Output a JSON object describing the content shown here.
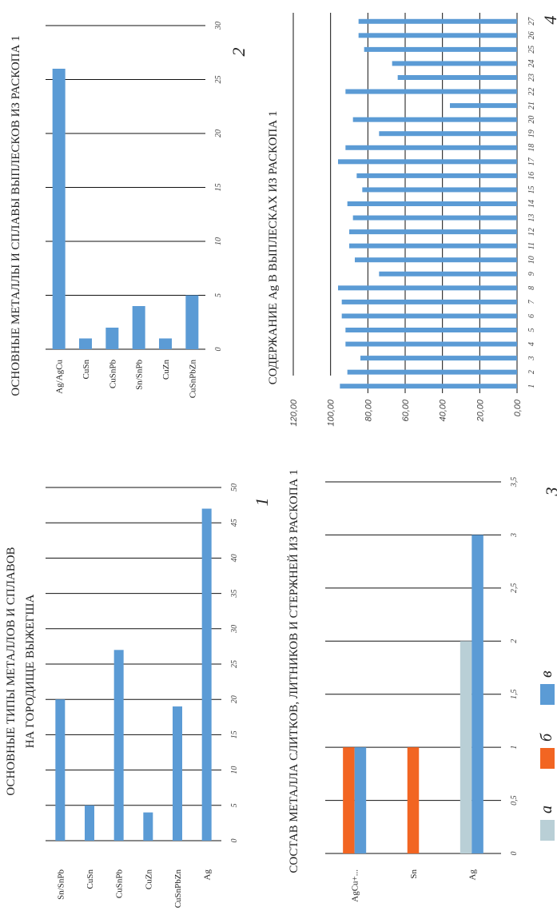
{
  "colors": {
    "blue": "#5b9bd5",
    "orange": "#f26522",
    "grey": "#b9cfd6"
  },
  "chart_data": [
    {
      "id": "chart1",
      "figure_number": "1",
      "type": "bar",
      "orientation": "horizontal",
      "title": [
        "ОСНОВНЫЕ ТИПЫ МЕТАЛЛОВ И СПЛАВОВ",
        "НА ГОРОДИЩЕ ВЫЖЕГША"
      ],
      "categories": [
        "Sn/SnPb",
        "CuSn",
        "CuSnPb",
        "CuZn",
        "CuSnPbZn",
        "Ag"
      ],
      "values": [
        20,
        5,
        27,
        4,
        19,
        47
      ],
      "xlim": [
        0,
        50
      ],
      "ticks": [
        "0",
        "5",
        "10",
        "15",
        "20",
        "25",
        "30",
        "35",
        "40",
        "45",
        "50"
      ],
      "grid": true
    },
    {
      "id": "chart2",
      "figure_number": "2",
      "type": "bar",
      "orientation": "horizontal",
      "title": [
        "ОСНОВНЫЕ МЕТАЛЛЫ И СПЛАВЫ ВЫПЛЕСКОВ ИЗ РАСКОПА 1"
      ],
      "categories": [
        "Ag/AgCu",
        "CuSn",
        "CuSnPb",
        "Sn/SnPb",
        "CuZn",
        "CuSnPbZn"
      ],
      "values": [
        26,
        1,
        2,
        4,
        1,
        5
      ],
      "xlim": [
        0,
        30
      ],
      "ticks": [
        "0",
        "5",
        "10",
        "15",
        "20",
        "25",
        "30"
      ],
      "grid": true
    },
    {
      "id": "chart3",
      "figure_number": "3",
      "type": "bar",
      "orientation": "horizontal",
      "title": [
        "СОСТАВ МЕТАЛЛА СЛИТКОВ, ЛИТНИКОВ И СТЕРЖНЕЙ ИЗ РАСКОПА 1"
      ],
      "categories": [
        "AgCu+...",
        "Sn",
        "Ag"
      ],
      "series": [
        {
          "name": "а",
          "color_key": "grey",
          "values": [
            0,
            0,
            2
          ]
        },
        {
          "name": "б",
          "color_key": "orange",
          "values": [
            1,
            1,
            0
          ]
        },
        {
          "name": "в",
          "color_key": "blue",
          "values": [
            1,
            0,
            3
          ]
        }
      ],
      "xlim": [
        0,
        3.5
      ],
      "ticks": [
        "0",
        "0,5",
        "1",
        "1,5",
        "2",
        "2,5",
        "3",
        "3,5"
      ],
      "legend": "bottom",
      "grid": true
    },
    {
      "id": "chart4",
      "figure_number": "4",
      "type": "bar",
      "orientation": "vertical",
      "title": [
        "СОДЕРЖАНИЕ Ag В ВЫПЛЕСКАХ ИЗ РАСКОПА 1"
      ],
      "categories": [
        "1",
        "2",
        "3",
        "4",
        "5",
        "6",
        "7",
        "8",
        "9",
        "10",
        "11",
        "12",
        "13",
        "14",
        "15",
        "16",
        "17",
        "18",
        "19",
        "20",
        "21",
        "22",
        "23",
        "24",
        "25",
        "26",
        "27"
      ],
      "values": [
        95,
        91,
        84,
        92,
        92,
        94,
        94,
        96,
        74,
        87,
        90,
        90,
        88,
        91,
        83,
        86,
        96,
        92,
        74,
        88,
        36,
        92,
        64,
        67,
        82,
        85,
        85
      ],
      "ylim": [
        0,
        120
      ],
      "ticks": [
        "0,00",
        "20,00",
        "40,00",
        "60,00",
        "80,00",
        "100,00",
        "120,00"
      ],
      "grid": true
    }
  ]
}
